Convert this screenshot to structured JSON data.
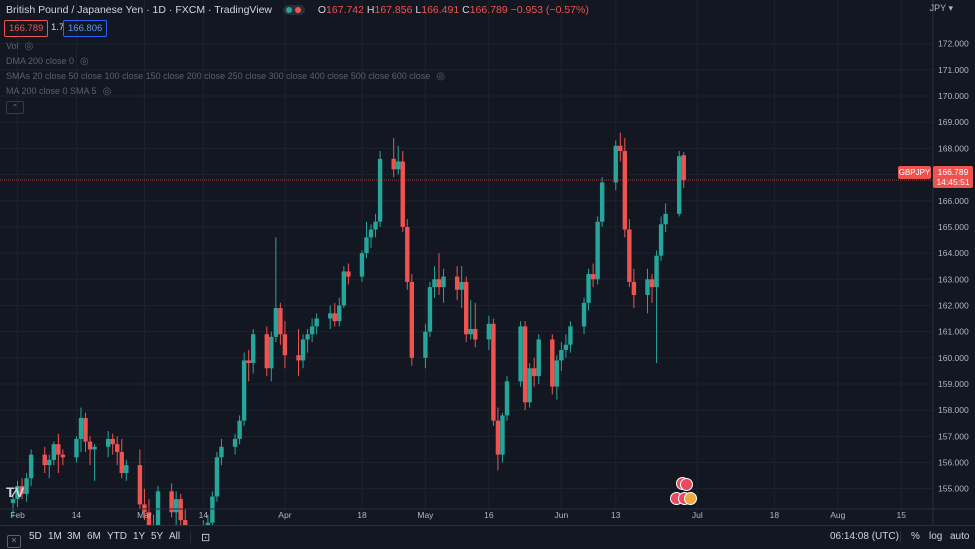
{
  "legend": {
    "symbol_name": "British Pound / Japanese Yen",
    "interval": "1D",
    "exchange": "FXCM",
    "source": "TradingView",
    "o_label": "O",
    "o_value": "167.742",
    "h_label": "H",
    "h_value": "167.856",
    "l_label": "L",
    "l_value": "166.491",
    "c_label": "C",
    "c_value": "166.789",
    "change": "−0.953 (−0.57%)"
  },
  "bid": "166.789",
  "spread": "1.7",
  "ask": "166.806",
  "indicators": [
    {
      "label": "Vol"
    },
    {
      "label": "DMA 200 close 0"
    },
    {
      "label": "SMAs 20 close 50 close 100 close 150 close 200 close 250 close 300 close 400 close 500 close 600 close"
    },
    {
      "label": "MA 200 close 0 SMA 5"
    }
  ],
  "currency_label": "JPY",
  "symbol_tag": "GBPJPY",
  "price_tag": "166.789",
  "countdown": "14:45:51",
  "y_ticks": [
    "172.000",
    "171.000",
    "170.000",
    "169.000",
    "168.000",
    "167.000",
    "166.000",
    "165.000",
    "164.000",
    "163.000",
    "162.000",
    "161.000",
    "160.000",
    "159.000",
    "158.000",
    "157.000",
    "156.000",
    "155.000"
  ],
  "x_ticks": [
    "Feb",
    "14",
    "Mar",
    "14",
    "Apr",
    "18",
    "May",
    "16",
    "Jun",
    "13",
    "Jul",
    "18",
    "Aug",
    "15"
  ],
  "toolbar": {
    "ranges": [
      "5D",
      "1M",
      "3M",
      "6M",
      "YTD",
      "1Y",
      "5Y",
      "All"
    ],
    "time": "06:14:08 (UTC)",
    "percent": "%",
    "log": "log",
    "auto": "auto"
  },
  "colors": {
    "up": "#26a69a",
    "down": "#ef5350",
    "background": "#131722",
    "grid": "#1e222d"
  },
  "chart_data": {
    "type": "candlestick",
    "current_price": 166.789,
    "ylim": [
      154.3,
      172.6
    ],
    "x_start": "2022-01-31",
    "x_end": "2022-08-22",
    "candles": [
      {
        "date": "2022-01-31",
        "o": 154.45,
        "h": 154.8,
        "l": 153.9,
        "c": 154.6
      },
      {
        "date": "2022-02-01",
        "o": 154.6,
        "h": 155.3,
        "l": 154.3,
        "c": 155.1
      },
      {
        "date": "2022-02-02",
        "o": 155.1,
        "h": 155.4,
        "l": 154.6,
        "c": 154.8
      },
      {
        "date": "2022-02-03",
        "o": 154.8,
        "h": 155.6,
        "l": 154.5,
        "c": 155.4
      },
      {
        "date": "2022-02-04",
        "o": 155.4,
        "h": 156.5,
        "l": 155.1,
        "c": 156.3
      },
      {
        "date": "2022-02-07",
        "o": 156.3,
        "h": 156.6,
        "l": 155.6,
        "c": 155.9
      },
      {
        "date": "2022-02-08",
        "o": 155.9,
        "h": 156.3,
        "l": 155.4,
        "c": 156.1
      },
      {
        "date": "2022-02-09",
        "o": 156.1,
        "h": 156.8,
        "l": 155.9,
        "c": 156.7
      },
      {
        "date": "2022-02-10",
        "o": 156.7,
        "h": 157.1,
        "l": 155.6,
        "c": 156.3
      },
      {
        "date": "2022-02-11",
        "o": 156.3,
        "h": 156.5,
        "l": 155.9,
        "c": 156.2
      },
      {
        "date": "2022-02-14",
        "o": 156.2,
        "h": 157.0,
        "l": 156.0,
        "c": 156.9
      },
      {
        "date": "2022-02-15",
        "o": 156.9,
        "h": 158.1,
        "l": 156.4,
        "c": 157.7
      },
      {
        "date": "2022-02-16",
        "o": 157.7,
        "h": 157.9,
        "l": 156.4,
        "c": 156.8
      },
      {
        "date": "2022-02-17",
        "o": 156.8,
        "h": 157.0,
        "l": 155.9,
        "c": 156.5
      },
      {
        "date": "2022-02-18",
        "o": 156.5,
        "h": 156.7,
        "l": 155.3,
        "c": 156.6
      },
      {
        "date": "2022-02-21",
        "o": 156.6,
        "h": 157.2,
        "l": 156.2,
        "c": 156.9
      },
      {
        "date": "2022-02-22",
        "o": 156.9,
        "h": 157.1,
        "l": 156.3,
        "c": 156.7
      },
      {
        "date": "2022-02-23",
        "o": 156.7,
        "h": 157.0,
        "l": 155.9,
        "c": 156.4
      },
      {
        "date": "2022-02-24",
        "o": 156.4,
        "h": 156.9,
        "l": 155.4,
        "c": 155.6
      },
      {
        "date": "2022-02-25",
        "o": 155.6,
        "h": 156.1,
        "l": 155.3,
        "c": 155.9
      },
      {
        "date": "2022-02-28",
        "o": 155.9,
        "h": 156.5,
        "l": 154.2,
        "c": 154.4
      },
      {
        "date": "2022-03-01",
        "o": 154.4,
        "h": 155.0,
        "l": 153.8,
        "c": 154.1
      },
      {
        "date": "2022-03-02",
        "o": 154.1,
        "h": 154.6,
        "l": 153.3,
        "c": 153.6
      },
      {
        "date": "2022-03-03",
        "o": 153.6,
        "h": 154.0,
        "l": 152.9,
        "c": 153.1
      },
      {
        "date": "2022-03-04",
        "o": 153.1,
        "h": 155.1,
        "l": 152.6,
        "c": 154.9
      },
      {
        "date": "2022-03-07",
        "o": 154.9,
        "h": 155.2,
        "l": 153.9,
        "c": 154.1
      },
      {
        "date": "2022-03-08",
        "o": 154.1,
        "h": 154.9,
        "l": 153.6,
        "c": 154.6
      },
      {
        "date": "2022-03-09",
        "o": 154.6,
        "h": 154.8,
        "l": 153.5,
        "c": 153.8
      },
      {
        "date": "2022-03-10",
        "o": 153.8,
        "h": 154.2,
        "l": 152.8,
        "c": 153.2
      },
      {
        "date": "2022-03-11",
        "o": 153.2,
        "h": 153.5,
        "l": 152.6,
        "c": 152.9
      },
      {
        "date": "2022-03-14",
        "o": 152.9,
        "h": 153.8,
        "l": 152.7,
        "c": 153.4
      },
      {
        "date": "2022-03-15",
        "o": 153.4,
        "h": 154.0,
        "l": 153.1,
        "c": 153.7
      },
      {
        "date": "2022-03-16",
        "o": 153.7,
        "h": 154.9,
        "l": 153.5,
        "c": 154.7
      },
      {
        "date": "2022-03-17",
        "o": 154.7,
        "h": 156.4,
        "l": 154.5,
        "c": 156.2
      },
      {
        "date": "2022-03-18",
        "o": 156.2,
        "h": 156.9,
        "l": 155.9,
        "c": 156.6
      },
      {
        "date": "2022-03-21",
        "o": 156.6,
        "h": 157.1,
        "l": 156.3,
        "c": 156.9
      },
      {
        "date": "2022-03-22",
        "o": 156.9,
        "h": 157.8,
        "l": 156.7,
        "c": 157.6
      },
      {
        "date": "2022-03-23",
        "o": 157.6,
        "h": 160.2,
        "l": 157.4,
        "c": 159.9
      },
      {
        "date": "2022-03-24",
        "o": 159.9,
        "h": 160.3,
        "l": 159.1,
        "c": 159.8
      },
      {
        "date": "2022-03-25",
        "o": 159.8,
        "h": 161.1,
        "l": 159.4,
        "c": 160.9
      },
      {
        "date": "2022-03-28",
        "o": 160.9,
        "h": 161.2,
        "l": 159.3,
        "c": 159.6
      },
      {
        "date": "2022-03-29",
        "o": 159.6,
        "h": 161.0,
        "l": 159.1,
        "c": 160.8
      },
      {
        "date": "2022-03-30",
        "o": 160.8,
        "h": 164.6,
        "l": 160.6,
        "c": 161.9
      },
      {
        "date": "2022-03-31",
        "o": 161.9,
        "h": 162.1,
        "l": 160.5,
        "c": 160.9
      },
      {
        "date": "2022-04-01",
        "o": 160.9,
        "h": 161.4,
        "l": 159.6,
        "c": 160.1
      },
      {
        "date": "2022-04-04",
        "o": 160.1,
        "h": 161.1,
        "l": 159.3,
        "c": 159.9
      },
      {
        "date": "2022-04-05",
        "o": 159.9,
        "h": 160.9,
        "l": 159.6,
        "c": 160.7
      },
      {
        "date": "2022-04-06",
        "o": 160.7,
        "h": 161.1,
        "l": 160.2,
        "c": 160.9
      },
      {
        "date": "2022-04-07",
        "o": 160.9,
        "h": 161.5,
        "l": 160.6,
        "c": 161.2
      },
      {
        "date": "2022-04-08",
        "o": 161.2,
        "h": 161.7,
        "l": 160.9,
        "c": 161.5
      },
      {
        "date": "2022-04-11",
        "o": 161.5,
        "h": 162.0,
        "l": 161.1,
        "c": 161.7
      },
      {
        "date": "2022-04-12",
        "o": 161.7,
        "h": 162.1,
        "l": 161.2,
        "c": 161.4
      },
      {
        "date": "2022-04-13",
        "o": 161.4,
        "h": 162.3,
        "l": 161.2,
        "c": 162.0
      },
      {
        "date": "2022-04-14",
        "o": 162.0,
        "h": 163.5,
        "l": 161.9,
        "c": 163.3
      },
      {
        "date": "2022-04-15",
        "o": 163.3,
        "h": 163.6,
        "l": 162.8,
        "c": 163.1
      },
      {
        "date": "2022-04-18",
        "o": 163.1,
        "h": 164.1,
        "l": 162.9,
        "c": 164.0
      },
      {
        "date": "2022-04-19",
        "o": 164.0,
        "h": 165.2,
        "l": 163.8,
        "c": 164.6
      },
      {
        "date": "2022-04-20",
        "o": 164.6,
        "h": 165.1,
        "l": 164.2,
        "c": 164.9
      },
      {
        "date": "2022-04-21",
        "o": 164.9,
        "h": 165.5,
        "l": 164.6,
        "c": 165.2
      },
      {
        "date": "2022-04-22",
        "o": 165.2,
        "h": 167.9,
        "l": 165.0,
        "c": 167.6
      },
      {
        "date": "2022-04-25",
        "o": 167.6,
        "h": 168.4,
        "l": 166.9,
        "c": 167.2
      },
      {
        "date": "2022-04-26",
        "o": 167.2,
        "h": 168.1,
        "l": 167.0,
        "c": 167.5
      },
      {
        "date": "2022-04-27",
        "o": 167.5,
        "h": 167.9,
        "l": 164.8,
        "c": 165.0
      },
      {
        "date": "2022-04-28",
        "o": 165.0,
        "h": 165.3,
        "l": 162.6,
        "c": 162.9
      },
      {
        "date": "2022-04-29",
        "o": 162.9,
        "h": 163.2,
        "l": 159.7,
        "c": 160.0
      },
      {
        "date": "2022-05-02",
        "o": 160.0,
        "h": 161.3,
        "l": 159.6,
        "c": 161.0
      },
      {
        "date": "2022-05-03",
        "o": 161.0,
        "h": 162.9,
        "l": 160.8,
        "c": 162.7
      },
      {
        "date": "2022-05-04",
        "o": 162.7,
        "h": 163.5,
        "l": 162.3,
        "c": 163.0
      },
      {
        "date": "2022-05-05",
        "o": 163.0,
        "h": 164.0,
        "l": 162.4,
        "c": 162.7
      },
      {
        "date": "2022-05-06",
        "o": 162.7,
        "h": 163.4,
        "l": 162.1,
        "c": 163.1
      },
      {
        "date": "2022-05-09",
        "o": 163.1,
        "h": 163.5,
        "l": 162.2,
        "c": 162.6
      },
      {
        "date": "2022-05-10",
        "o": 162.6,
        "h": 163.5,
        "l": 161.9,
        "c": 162.9
      },
      {
        "date": "2022-05-11",
        "o": 162.9,
        "h": 163.1,
        "l": 160.6,
        "c": 160.9
      },
      {
        "date": "2022-05-12",
        "o": 160.9,
        "h": 162.2,
        "l": 160.7,
        "c": 161.1
      },
      {
        "date": "2022-05-13",
        "o": 161.1,
        "h": 162.1,
        "l": 160.4,
        "c": 160.7
      },
      {
        "date": "2022-05-16",
        "o": 160.7,
        "h": 161.6,
        "l": 160.3,
        "c": 161.3
      },
      {
        "date": "2022-05-17",
        "o": 161.3,
        "h": 161.5,
        "l": 157.4,
        "c": 157.6
      },
      {
        "date": "2022-05-18",
        "o": 157.6,
        "h": 158.1,
        "l": 155.7,
        "c": 156.3
      },
      {
        "date": "2022-05-19",
        "o": 156.3,
        "h": 157.9,
        "l": 156.0,
        "c": 157.8
      },
      {
        "date": "2022-05-20",
        "o": 157.8,
        "h": 159.3,
        "l": 157.6,
        "c": 159.1
      },
      {
        "date": "2022-05-23",
        "o": 159.1,
        "h": 161.4,
        "l": 158.9,
        "c": 161.2
      },
      {
        "date": "2022-05-24",
        "o": 161.2,
        "h": 161.4,
        "l": 158.0,
        "c": 158.3
      },
      {
        "date": "2022-05-25",
        "o": 158.3,
        "h": 159.8,
        "l": 158.1,
        "c": 159.6
      },
      {
        "date": "2022-05-26",
        "o": 159.6,
        "h": 160.0,
        "l": 158.9,
        "c": 159.3
      },
      {
        "date": "2022-05-27",
        "o": 159.3,
        "h": 160.9,
        "l": 159.0,
        "c": 160.7
      },
      {
        "date": "2022-05-30",
        "o": 160.7,
        "h": 160.9,
        "l": 158.6,
        "c": 158.9
      },
      {
        "date": "2022-05-31",
        "o": 158.9,
        "h": 160.1,
        "l": 158.4,
        "c": 159.9
      },
      {
        "date": "2022-06-01",
        "o": 159.9,
        "h": 160.6,
        "l": 159.5,
        "c": 160.3
      },
      {
        "date": "2022-06-02",
        "o": 160.3,
        "h": 160.9,
        "l": 160.0,
        "c": 160.5
      },
      {
        "date": "2022-06-03",
        "o": 160.5,
        "h": 161.4,
        "l": 160.2,
        "c": 161.2
      },
      {
        "date": "2022-06-06",
        "o": 161.2,
        "h": 162.3,
        "l": 160.9,
        "c": 162.1
      },
      {
        "date": "2022-06-07",
        "o": 162.1,
        "h": 163.4,
        "l": 161.8,
        "c": 163.2
      },
      {
        "date": "2022-06-08",
        "o": 163.2,
        "h": 163.6,
        "l": 162.7,
        "c": 163.0
      },
      {
        "date": "2022-06-09",
        "o": 163.0,
        "h": 165.4,
        "l": 162.8,
        "c": 165.2
      },
      {
        "date": "2022-06-10",
        "o": 165.2,
        "h": 166.9,
        "l": 165.0,
        "c": 166.7
      },
      {
        "date": "2022-06-13",
        "o": 166.7,
        "h": 168.3,
        "l": 166.4,
        "c": 168.1
      },
      {
        "date": "2022-06-14",
        "o": 168.1,
        "h": 168.6,
        "l": 167.5,
        "c": 167.9
      },
      {
        "date": "2022-06-15",
        "o": 167.9,
        "h": 168.4,
        "l": 164.6,
        "c": 164.9
      },
      {
        "date": "2022-06-16",
        "o": 164.9,
        "h": 165.3,
        "l": 162.7,
        "c": 162.9
      },
      {
        "date": "2022-06-17",
        "o": 162.9,
        "h": 163.4,
        "l": 161.9,
        "c": 162.4
      },
      {
        "date": "2022-06-20",
        "o": 162.4,
        "h": 163.4,
        "l": 161.7,
        "c": 163.0
      },
      {
        "date": "2022-06-21",
        "o": 163.0,
        "h": 163.2,
        "l": 162.1,
        "c": 162.7
      },
      {
        "date": "2022-06-22",
        "o": 162.7,
        "h": 164.1,
        "l": 159.8,
        "c": 163.9
      },
      {
        "date": "2022-06-23",
        "o": 163.9,
        "h": 165.4,
        "l": 163.7,
        "c": 165.1
      },
      {
        "date": "2022-06-24",
        "o": 165.1,
        "h": 165.9,
        "l": 164.8,
        "c": 165.5
      },
      {
        "date": "2022-06-27",
        "o": 165.5,
        "h": 167.9,
        "l": 165.4,
        "c": 167.7
      },
      {
        "date": "2022-06-28",
        "o": 167.742,
        "h": 167.856,
        "l": 166.491,
        "c": 166.789
      }
    ]
  }
}
